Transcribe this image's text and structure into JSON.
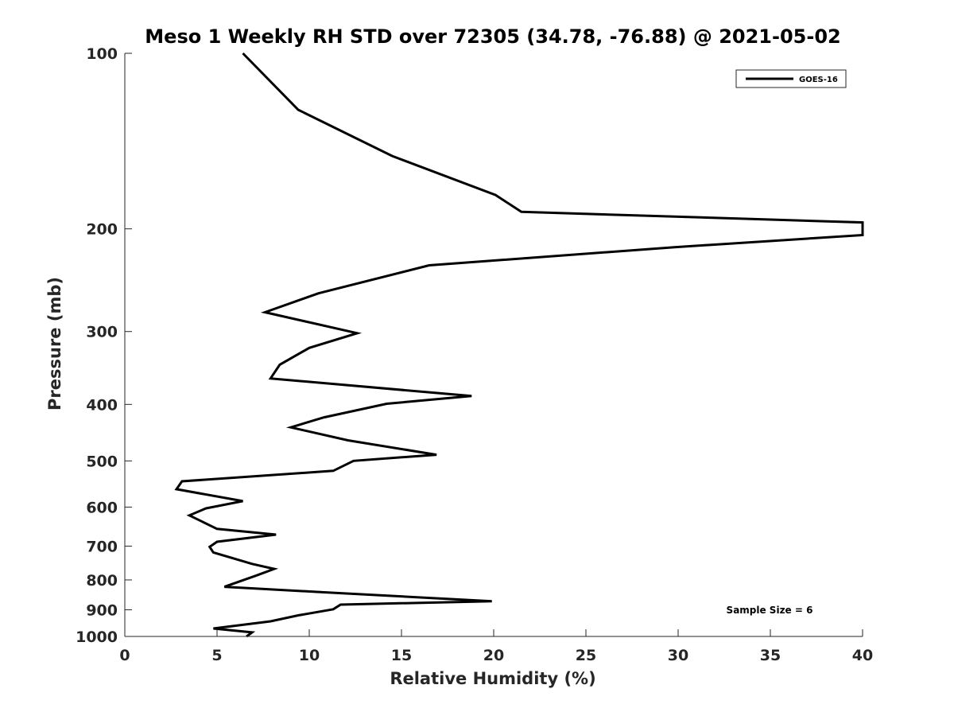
{
  "chart_data": {
    "type": "line",
    "title": "Meso 1 Weekly RH STD over 72305 (34.78, -76.88) @ 2021-05-02",
    "xlabel": "Relative Humidity (%)",
    "ylabel": "Pressure (mb)",
    "xlim": [
      0,
      40
    ],
    "ylim": [
      100,
      1000
    ],
    "y_scale": "log",
    "y_reversed": true,
    "x_ticks": [
      0,
      5,
      10,
      15,
      20,
      25,
      30,
      35,
      40
    ],
    "y_ticks": [
      100,
      200,
      300,
      400,
      500,
      600,
      700,
      800,
      900,
      1000
    ],
    "grid": false,
    "legend_position": "top-right",
    "annotation": "Sample Size = 6",
    "line_color": "#000000",
    "series": [
      {
        "name": "GOES-16",
        "points": [
          [
            6.4,
            100
          ],
          [
            9.4,
            125
          ],
          [
            14.5,
            150
          ],
          [
            20.1,
            175
          ],
          [
            21.5,
            187
          ],
          [
            40,
            195
          ],
          [
            40,
            205
          ],
          [
            29.8,
            215
          ],
          [
            16.5,
            231
          ],
          [
            10.5,
            258
          ],
          [
            7.6,
            278
          ],
          [
            12.6,
            302
          ],
          [
            10.0,
            320
          ],
          [
            8.4,
            342
          ],
          [
            7.9,
            361
          ],
          [
            18.8,
            387
          ],
          [
            14.2,
            399
          ],
          [
            10.8,
            421
          ],
          [
            9.0,
            438
          ],
          [
            12.1,
            461
          ],
          [
            16.9,
            488
          ],
          [
            12.4,
            500
          ],
          [
            11.3,
            520
          ],
          [
            3.1,
            542
          ],
          [
            2.8,
            559
          ],
          [
            6.4,
            586
          ],
          [
            4.4,
            603
          ],
          [
            3.5,
            620
          ],
          [
            5.0,
            654
          ],
          [
            8.2,
            669
          ],
          [
            5.0,
            688
          ],
          [
            4.6,
            702
          ],
          [
            4.8,
            718
          ],
          [
            6.9,
            751
          ],
          [
            8.1,
            766
          ],
          [
            7.1,
            787
          ],
          [
            5.4,
            822
          ],
          [
            10.8,
            840
          ],
          [
            19.9,
            870
          ],
          [
            11.7,
            882
          ],
          [
            11.3,
            898
          ],
          [
            9.4,
            920
          ],
          [
            7.9,
            942
          ],
          [
            4.8,
            969
          ],
          [
            6.9,
            984
          ],
          [
            6.6,
            1000
          ]
        ]
      }
    ]
  }
}
